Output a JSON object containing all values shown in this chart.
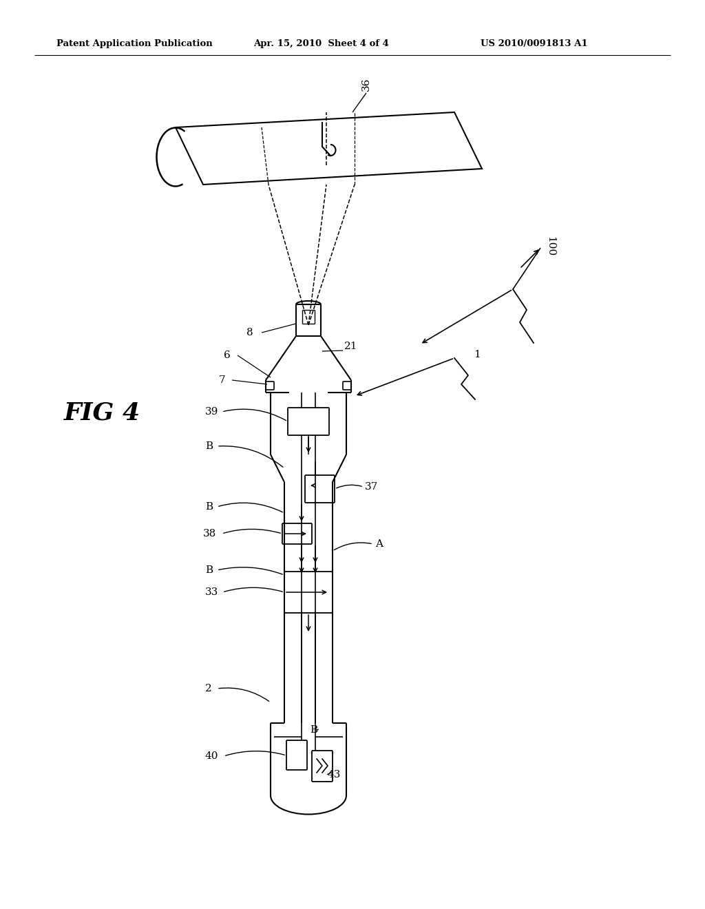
{
  "bg_color": "#ffffff",
  "header_left": "Patent Application Publication",
  "header_mid": "Apr. 15, 2010  Sheet 4 of 4",
  "header_right": "US 2010/0091813 A1"
}
